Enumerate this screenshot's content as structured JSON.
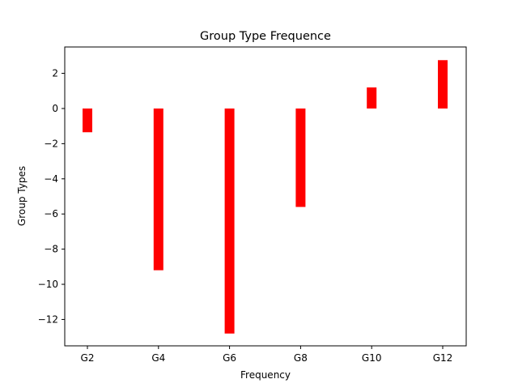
{
  "chart_data": {
    "type": "bar",
    "title": "Group Type Frequence",
    "xlabel": "Frequency",
    "ylabel": "Group Types",
    "categories": [
      "G2",
      "G4",
      "G6",
      "G8",
      "G10",
      "G12"
    ],
    "values": [
      -1.35,
      -9.2,
      -12.8,
      -5.6,
      1.2,
      2.75
    ],
    "ylim": [
      -13.5,
      3.5
    ],
    "yticks": [
      2,
      0,
      -2,
      -4,
      -6,
      -8,
      -10,
      -12
    ],
    "ytick_labels": [
      "2",
      "0",
      "−2",
      "−4",
      "−6",
      "−8",
      "−10",
      "−12"
    ],
    "bar_color": "#ff0000",
    "grid": false,
    "legend": "none"
  }
}
